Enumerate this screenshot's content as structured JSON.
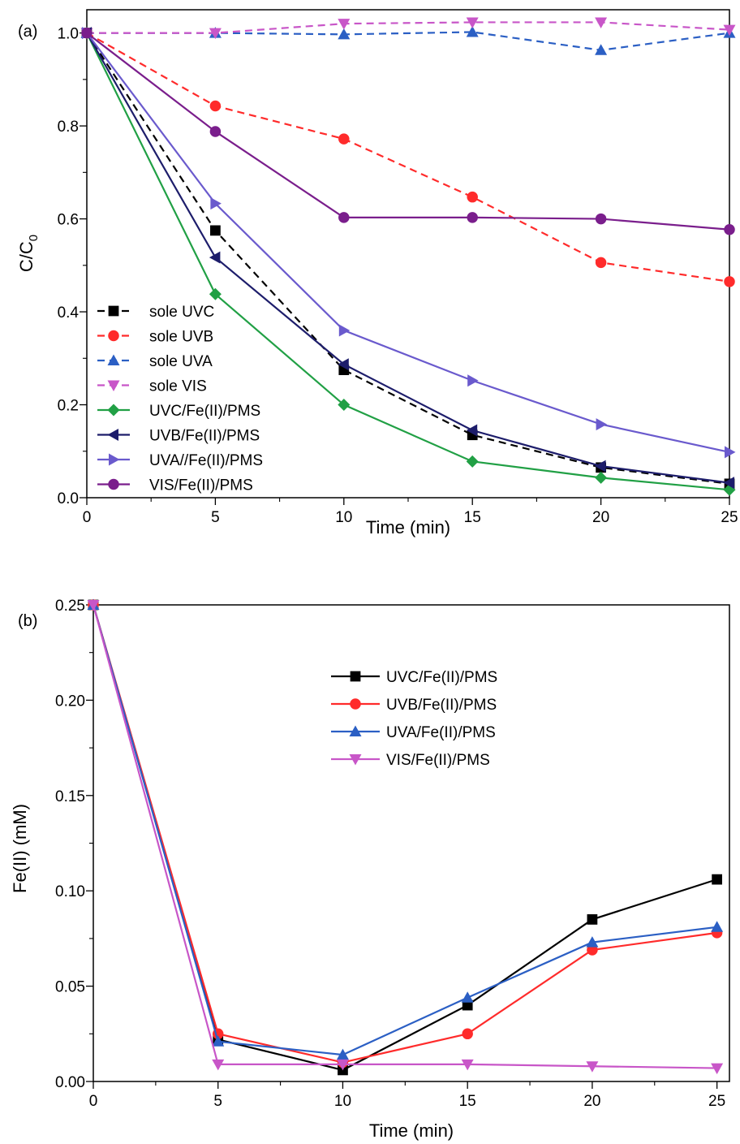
{
  "chart_data": [
    {
      "panel_label": "(a)",
      "type": "line",
      "xlabel": "Time (min)",
      "ylabel": "C/C",
      "ylabel_sub": "0",
      "xlim": [
        0,
        25
      ],
      "ylim": [
        0,
        1.05
      ],
      "xticks": [
        0,
        5,
        10,
        15,
        20,
        25
      ],
      "xtick_labels": [
        "0",
        "5",
        "10",
        "15",
        "20",
        "25"
      ],
      "yticks": [
        0,
        0.2,
        0.4,
        0.6,
        0.8,
        1.0
      ],
      "ytick_labels": [
        "0.0",
        "0.2",
        "0.4",
        "0.6",
        "0.8",
        "1.0"
      ],
      "legend_position": "bottom-left",
      "x": [
        0,
        5,
        10,
        15,
        20,
        25
      ],
      "series": [
        {
          "name": "sole UVC",
          "values": [
            1.0,
            0.575,
            0.275,
            0.135,
            0.065,
            0.03
          ],
          "color": "#000000",
          "dash": true,
          "marker": "square"
        },
        {
          "name": "sole UVB",
          "values": [
            1.0,
            0.843,
            0.772,
            0.647,
            0.506,
            0.465
          ],
          "color": "#ff2b2b",
          "dash": true,
          "marker": "circle"
        },
        {
          "name": "sole UVA",
          "values": [
            1.0,
            1.0,
            0.997,
            1.002,
            0.963,
            1.0
          ],
          "color": "#2b5fc4",
          "dash": true,
          "marker": "triangle-up"
        },
        {
          "name": "sole VIS",
          "values": [
            1.0,
            1.0,
            1.02,
            1.023,
            1.023,
            1.007
          ],
          "color": "#c856c8",
          "dash": true,
          "marker": "triangle-down"
        },
        {
          "name": "UVC/Fe(II)/PMS",
          "values": [
            1.0,
            0.438,
            0.2,
            0.078,
            0.043,
            0.017
          ],
          "color": "#21a045",
          "dash": false,
          "marker": "diamond"
        },
        {
          "name": "UVB/Fe(II)/PMS",
          "values": [
            1.0,
            0.517,
            0.287,
            0.145,
            0.068,
            0.032
          ],
          "color": "#1d1d6b",
          "dash": false,
          "marker": "triangle-left"
        },
        {
          "name": "UVA//Fe(II)/PMS",
          "values": [
            1.0,
            0.633,
            0.36,
            0.252,
            0.158,
            0.098
          ],
          "color": "#6a5acd",
          "dash": false,
          "marker": "triangle-right"
        },
        {
          "name": "VIS/Fe(II)/PMS",
          "values": [
            1.0,
            0.788,
            0.603,
            0.603,
            0.6,
            0.577
          ],
          "color": "#7a1e8c",
          "dash": false,
          "marker": "circle"
        }
      ]
    },
    {
      "panel_label": "(b)",
      "type": "line",
      "xlabel": "Time (min)",
      "ylabel": "Fe(II) (mM)",
      "xlim": [
        0,
        25.5
      ],
      "ylim": [
        0,
        0.25
      ],
      "xticks": [
        0,
        5,
        10,
        15,
        20,
        25
      ],
      "xtick_labels": [
        "0",
        "5",
        "10",
        "15",
        "20",
        "25"
      ],
      "yticks": [
        0,
        0.05,
        0.1,
        0.15,
        0.2,
        0.25
      ],
      "ytick_labels": [
        "0.00",
        "0.05",
        "0.10",
        "0.15",
        "0.20",
        "0.25"
      ],
      "legend_position": "top-center",
      "x": [
        0,
        5,
        10,
        15,
        20,
        25
      ],
      "series": [
        {
          "name": "UVC/Fe(II)/PMS",
          "values": [
            0.25,
            0.022,
            0.006,
            0.04,
            0.085,
            0.106
          ],
          "color": "#000000",
          "dash": false,
          "marker": "square"
        },
        {
          "name": "UVB/Fe(II)/PMS",
          "values": [
            0.25,
            0.025,
            0.01,
            0.025,
            0.069,
            0.078
          ],
          "color": "#ff2b2b",
          "dash": false,
          "marker": "circle"
        },
        {
          "name": "UVA/Fe(II)/PMS",
          "values": [
            0.25,
            0.021,
            0.014,
            0.044,
            0.073,
            0.081
          ],
          "color": "#2b5fc4",
          "dash": false,
          "marker": "triangle-up"
        },
        {
          "name": "VIS/Fe(II)/PMS",
          "values": [
            0.25,
            0.009,
            0.009,
            0.009,
            0.008,
            0.007
          ],
          "color": "#c856c8",
          "dash": false,
          "marker": "triangle-down"
        }
      ]
    }
  ]
}
